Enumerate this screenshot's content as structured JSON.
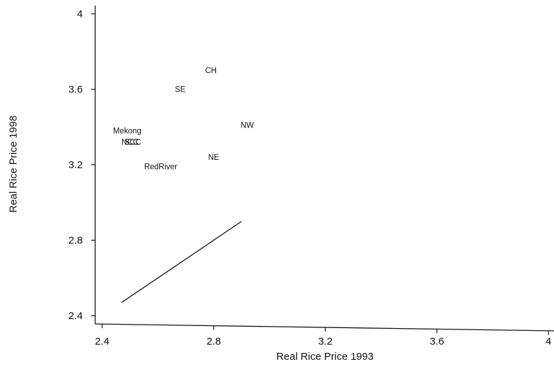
{
  "chart_data": {
    "type": "scatter",
    "xlabel": "Real Rice Price 1993",
    "ylabel": "Real Rice Price 1998",
    "xlim": [
      2.4,
      4.0
    ],
    "ylim": [
      2.4,
      4.0
    ],
    "x_ticks": [
      "2.4",
      "2.8",
      "3.2",
      "3.6",
      "4"
    ],
    "y_ticks": [
      "2.4",
      "2.8",
      "3.2",
      "3.6",
      "4"
    ],
    "grid": false,
    "points": [
      {
        "label": "CH",
        "x": 2.79,
        "y": 3.7
      },
      {
        "label": "SE",
        "x": 2.68,
        "y": 3.6
      },
      {
        "label": "NW",
        "x": 2.92,
        "y": 3.41
      },
      {
        "label": "Mekong",
        "x": 2.49,
        "y": 3.38
      },
      {
        "label": "NCC",
        "x": 2.5,
        "y": 3.32
      },
      {
        "label": "SCC",
        "x": 2.51,
        "y": 3.32
      },
      {
        "label": "NE",
        "x": 2.8,
        "y": 3.24
      },
      {
        "label": "RedRiver",
        "x": 2.61,
        "y": 3.19
      }
    ],
    "reference_line": {
      "from": [
        2.47,
        2.47
      ],
      "to": [
        2.9,
        2.9
      ]
    }
  }
}
